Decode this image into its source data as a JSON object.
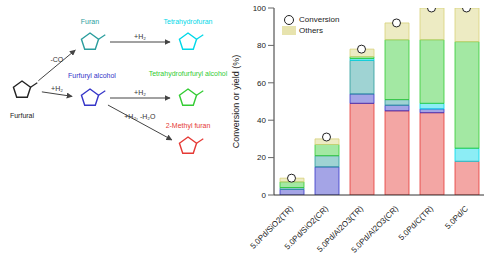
{
  "chart_data": {
    "type": "bar",
    "stacked": true,
    "y_label": "Conversion or yield (%)",
    "categories": [
      "5.0Pd/SiO2(TR)",
      "5.0Pd/SiO2(CR)",
      "5.0Pd/Al2O3(TR)",
      "5.0Pd/Al2O3(CR)",
      "5.0Pd/C(TR)",
      "5.0Pd/C"
    ],
    "ylim": [
      0,
      100
    ],
    "yticks": [
      0,
      20,
      40,
      60,
      80,
      100
    ],
    "grid": false,
    "legend": "upper left",
    "series": [
      {
        "name": "2-Methyl furan",
        "color": "#e53935",
        "values": [
          0,
          0,
          49,
          45,
          44,
          18
        ]
      },
      {
        "name": "Furfuryl alcohol",
        "color": "#3535c8",
        "values": [
          3,
          15,
          5,
          3,
          2,
          0
        ]
      },
      {
        "name": "Furan",
        "color": "#2a9d9d",
        "values": [
          1,
          6,
          18,
          3,
          0,
          0
        ]
      },
      {
        "name": "Tetrahydrofuran",
        "color": "#00d8e8",
        "values": [
          0,
          0,
          1,
          0,
          3,
          7
        ]
      },
      {
        "name": "Tetrahydrofurfuryl alcohol",
        "color": "#33cc33",
        "values": [
          3,
          6,
          1,
          32,
          34,
          57
        ]
      },
      {
        "name": "Others",
        "color": "#d8d27a",
        "values": [
          2,
          3,
          4,
          9,
          17,
          18
        ]
      },
      {
        "name": "Conversion",
        "type": "scatter",
        "marker": "circle",
        "color": "#222222",
        "values": [
          9,
          31,
          78,
          92,
          100,
          100
        ]
      }
    ]
  },
  "diagram": {
    "nodes": [
      {
        "label": "Furfural"
      },
      {
        "label": "Furan"
      },
      {
        "label": "Tetrahydrofuran"
      },
      {
        "label": "Furfuryl alcohol"
      },
      {
        "label": "Tetrahydrofurfuryl alcohol"
      },
      {
        "label": "2-Methyl furan"
      }
    ],
    "edges": [
      {
        "from": 0,
        "to": 1,
        "label": "-CO"
      },
      {
        "from": 1,
        "to": 2,
        "label": "+H₂"
      },
      {
        "from": 0,
        "to": 3,
        "label": "+H₂"
      },
      {
        "from": 3,
        "to": 4,
        "label": "+H₂"
      },
      {
        "from": 3,
        "to": 5,
        "label": "+H₂, -H₂O"
      }
    ]
  }
}
